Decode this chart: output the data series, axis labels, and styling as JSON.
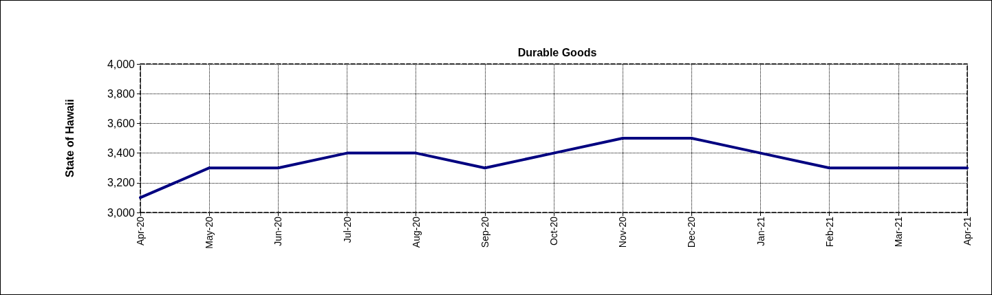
{
  "chart_data": {
    "type": "line",
    "title": "Durable Goods",
    "ylabel": "State of Hawaii",
    "categories": [
      "Apr-20",
      "May-20",
      "Jun-20",
      "Jul-20",
      "Aug-20",
      "Sep-20",
      "Oct-20",
      "Nov-20",
      "Dec-20",
      "Jan-21",
      "Feb-21",
      "Mar-21",
      "Apr-21"
    ],
    "series": [
      {
        "color": "#000080",
        "values": [
          3100,
          3300,
          3300,
          3400,
          3400,
          3300,
          3400,
          3500,
          3500,
          3400,
          3300,
          3300,
          3300
        ]
      }
    ],
    "ylim": [
      3000,
      4000
    ],
    "yticks": [
      {
        "value": 3000,
        "label": "3,000"
      },
      {
        "value": 3200,
        "label": "3,200"
      },
      {
        "value": 3400,
        "label": "3,400"
      },
      {
        "value": 3600,
        "label": "3,600"
      },
      {
        "value": 3800,
        "label": "3,800"
      },
      {
        "value": 4000,
        "label": "4,000"
      }
    ],
    "grid": true,
    "marker": "none",
    "line_style": "solid"
  }
}
